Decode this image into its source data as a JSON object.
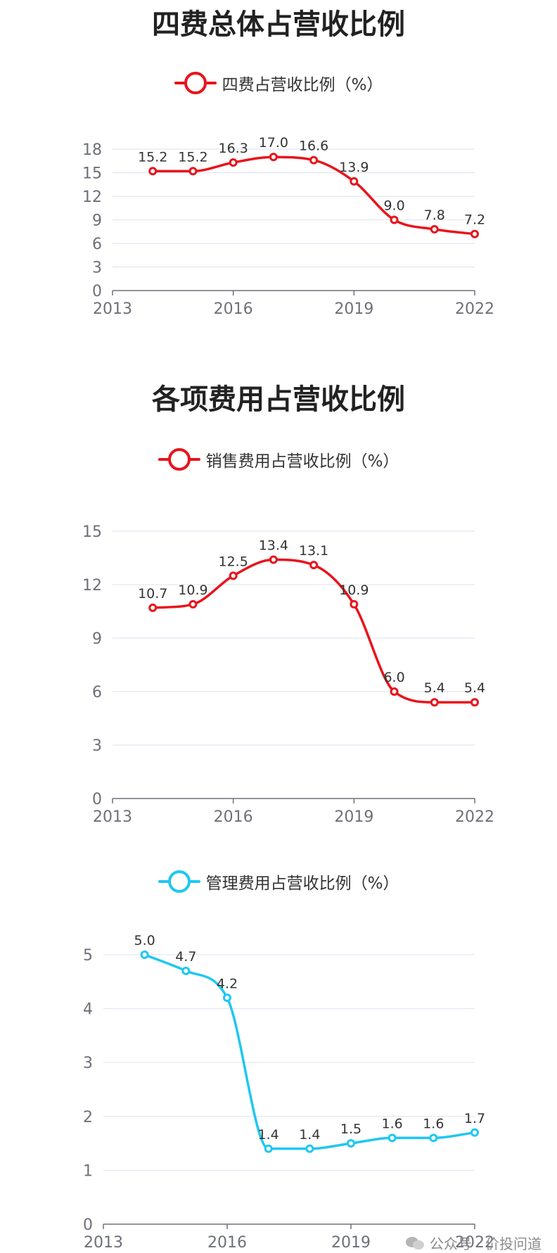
{
  "titles": {
    "chart1": "四费总体占营收比例",
    "chart2": "各项费用占营收比例"
  },
  "colors": {
    "red": "#e8141c",
    "cyan": "#1fc7f2",
    "grid": "#dde2ef",
    "axis": "#6e7079"
  },
  "watermark": {
    "text": "公众号 · 价投问道",
    "icon": "wechat-icon"
  },
  "chart_data": [
    {
      "type": "line",
      "title": "四费总体占营收比例",
      "x": [
        2014,
        2015,
        2016,
        2017,
        2018,
        2019,
        2020,
        2021,
        2022
      ],
      "xticks": [
        "2013",
        "2016",
        "2019",
        "2022"
      ],
      "xlim": [
        2013,
        2022
      ],
      "ylim": [
        0,
        18
      ],
      "yticks": [
        "0",
        "3",
        "6",
        "9",
        "12",
        "15",
        "18"
      ],
      "grid": true,
      "legend_position": "top-center",
      "series": [
        {
          "name": "四费占营收比例（%）",
          "color": "#e8141c",
          "values": [
            15.2,
            15.2,
            16.3,
            17.0,
            16.6,
            13.9,
            9.0,
            7.8,
            7.2
          ],
          "labels": [
            "15.2",
            "15.2",
            "16.3",
            "17.0",
            "16.6",
            "13.9",
            "9.0",
            "7.8",
            "7.2"
          ]
        }
      ]
    },
    {
      "type": "line",
      "title": "",
      "x": [
        2014,
        2015,
        2016,
        2017,
        2018,
        2019,
        2020,
        2021,
        2022
      ],
      "xticks": [
        "2013",
        "2016",
        "2019",
        "2022"
      ],
      "xlim": [
        2013,
        2022
      ],
      "ylim": [
        0,
        15
      ],
      "yticks": [
        "0",
        "3",
        "6",
        "9",
        "12",
        "15"
      ],
      "grid": true,
      "legend_position": "top-center",
      "series": [
        {
          "name": "销售费用占营收比例（%）",
          "color": "#e8141c",
          "values": [
            10.7,
            10.9,
            12.5,
            13.4,
            13.1,
            10.9,
            6.0,
            5.4,
            5.4
          ],
          "labels": [
            "10.7",
            "10.9",
            "12.5",
            "13.4",
            "13.1",
            "10.9",
            "6.0",
            "5.4",
            "5.4"
          ]
        }
      ]
    },
    {
      "type": "line",
      "title": "",
      "x": [
        2014,
        2015,
        2016,
        2017,
        2018,
        2019,
        2020,
        2021,
        2022
      ],
      "xticks": [
        "2013",
        "2016",
        "2019",
        "2022"
      ],
      "xlim": [
        2013,
        2022
      ],
      "ylim": [
        0,
        5
      ],
      "yticks": [
        "0",
        "1",
        "2",
        "3",
        "4",
        "5"
      ],
      "grid": true,
      "legend_position": "top-center",
      "series": [
        {
          "name": "管理费用占营收比例（%）",
          "color": "#1fc7f2",
          "values": [
            5.0,
            4.7,
            4.2,
            1.4,
            1.4,
            1.5,
            1.6,
            1.6,
            1.7
          ],
          "labels": [
            "5.0",
            "4.7",
            "4.2",
            "1.4",
            "1.4",
            "1.5",
            "1.6",
            "1.6",
            "1.7"
          ]
        }
      ]
    }
  ]
}
